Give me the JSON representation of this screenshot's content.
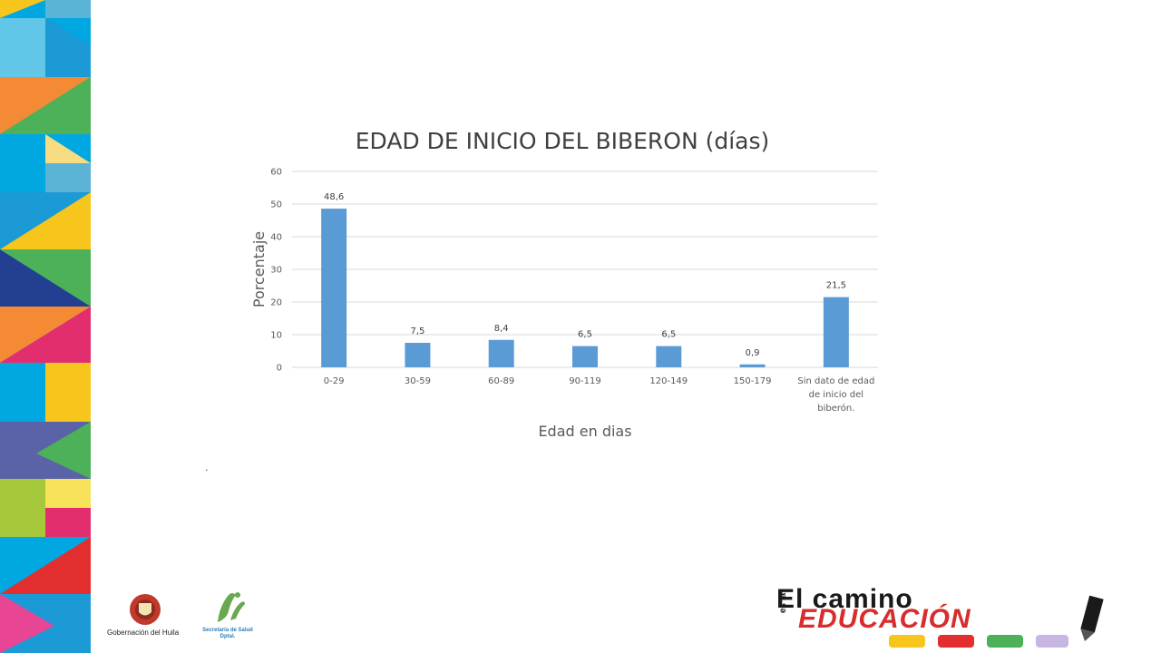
{
  "chart_data": {
    "type": "bar",
    "title": "EDAD DE INICIO DEL BIBERON (días)",
    "xlabel": "Edad en dias",
    "ylabel": "Porcentaje",
    "ylim": [
      0,
      60
    ],
    "yticks": [
      "0",
      "10",
      "20",
      "30",
      "40",
      "50",
      "60"
    ],
    "grid": true,
    "legend": "none",
    "bar_color": "#5b9bd5",
    "categories": [
      [
        "0-29"
      ],
      [
        "30-59"
      ],
      [
        "60-89"
      ],
      [
        "90-119"
      ],
      [
        "120-149"
      ],
      [
        "150-179"
      ],
      [
        "Sin dato de edad",
        "de inicio del",
        "biberón."
      ]
    ],
    "values": [
      48.6,
      7.5,
      8.4,
      6.5,
      6.5,
      0.9,
      21.5
    ],
    "data_labels": [
      "48,6",
      "7,5",
      "8,4",
      "6,5",
      "6,5",
      "0,9",
      "21,5"
    ]
  },
  "slide": {
    "dot": ".",
    "footer": {
      "gobernacion_label": "Gobernación del Huila",
      "secretaria_label_1": "Secretaría de Salud",
      "secretaria_label_2": "Dptal.",
      "brand_line1": "El camino",
      "brand_side": "es la",
      "brand_line2": "EDUCACIÓN"
    }
  }
}
